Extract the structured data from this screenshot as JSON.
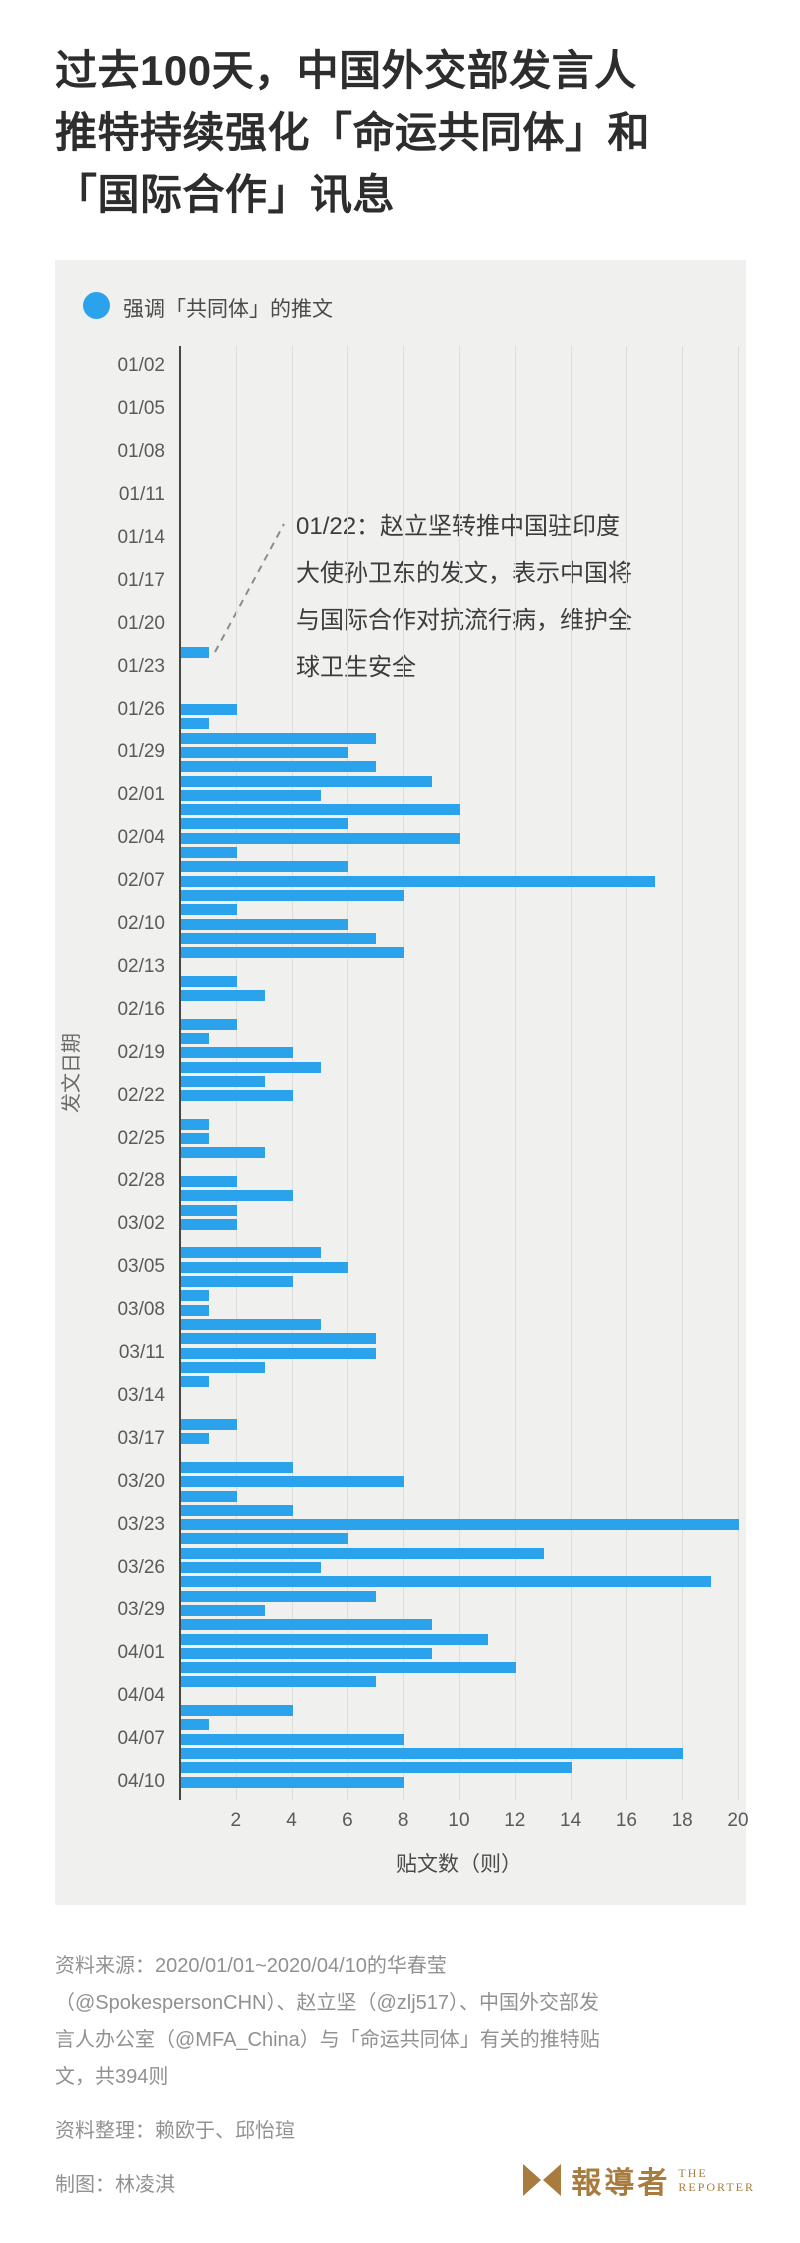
{
  "title": {
    "text": "过去100天，中国外交部发言人\n推特持续强化「命运共同体」和\n「国际合作」讯息"
  },
  "legend": {
    "label": "强调「共同体」的推文"
  },
  "annotation": {
    "text": "01/22：赵立坚转推中国驻印度\n大使孙卫东的发文，表示中国将\n与国际合作对抗流行病，维护全\n球卫生安全"
  },
  "chart_data": {
    "type": "bar",
    "orientation": "horizontal",
    "title": "强调「共同体」的推文",
    "xlabel": "贴文数（则）",
    "ylabel": "发文日期",
    "xlim": [
      0,
      20.3
    ],
    "x_ticks": [
      2,
      4,
      6,
      8,
      10,
      12,
      14,
      16,
      18,
      20
    ],
    "grid": true,
    "bar_color": "#2aa2ec",
    "total_label": "共394则",
    "total": 394,
    "y_tick_labels": [
      "01/02",
      "01/05",
      "01/08",
      "01/11",
      "01/14",
      "01/17",
      "01/20",
      "01/23",
      "01/26",
      "01/29",
      "02/01",
      "02/04",
      "02/07",
      "02/10",
      "02/13",
      "02/16",
      "02/19",
      "02/22",
      "02/25",
      "02/28",
      "03/02",
      "03/05",
      "03/08",
      "03/11",
      "03/14",
      "03/17",
      "03/20",
      "03/23",
      "03/26",
      "03/29",
      "04/01",
      "04/04",
      "04/07",
      "04/10"
    ],
    "dates": [
      "01/01",
      "01/02",
      "01/03",
      "01/04",
      "01/05",
      "01/06",
      "01/07",
      "01/08",
      "01/09",
      "01/10",
      "01/11",
      "01/12",
      "01/13",
      "01/14",
      "01/15",
      "01/16",
      "01/17",
      "01/18",
      "01/19",
      "01/20",
      "01/21",
      "01/22",
      "01/23",
      "01/24",
      "01/25",
      "01/26",
      "01/27",
      "01/28",
      "01/29",
      "01/30",
      "01/31",
      "02/01",
      "02/02",
      "02/03",
      "02/04",
      "02/05",
      "02/06",
      "02/07",
      "02/08",
      "02/09",
      "02/10",
      "02/11",
      "02/12",
      "02/13",
      "02/14",
      "02/15",
      "02/16",
      "02/17",
      "02/18",
      "02/19",
      "02/20",
      "02/21",
      "02/22",
      "02/23",
      "02/24",
      "02/25",
      "02/26",
      "02/27",
      "02/28",
      "02/29",
      "03/01",
      "03/02",
      "03/03",
      "03/04",
      "03/05",
      "03/06",
      "03/07",
      "03/08",
      "03/09",
      "03/10",
      "03/11",
      "03/12",
      "03/13",
      "03/14",
      "03/15",
      "03/16",
      "03/17",
      "03/18",
      "03/19",
      "03/20",
      "03/21",
      "03/22",
      "03/23",
      "03/24",
      "03/25",
      "03/26",
      "03/27",
      "03/28",
      "03/29",
      "03/30",
      "03/31",
      "04/01",
      "04/02",
      "04/03",
      "04/04",
      "04/05",
      "04/06",
      "04/07",
      "04/08",
      "04/09",
      "04/10"
    ],
    "values": [
      0,
      0,
      0,
      0,
      0,
      0,
      0,
      0,
      0,
      0,
      0,
      0,
      0,
      0,
      0,
      0,
      0,
      0,
      0,
      0,
      0,
      1,
      0,
      0,
      0,
      2,
      1,
      7,
      6,
      7,
      9,
      5,
      10,
      6,
      10,
      2,
      6,
      17,
      8,
      2,
      6,
      7,
      8,
      0,
      2,
      3,
      0,
      2,
      1,
      4,
      5,
      3,
      4,
      0,
      1,
      1,
      3,
      0,
      2,
      4,
      2,
      2,
      0,
      5,
      6,
      4,
      1,
      1,
      5,
      7,
      7,
      3,
      1,
      0,
      0,
      2,
      1,
      0,
      4,
      8,
      2,
      4,
      20,
      6,
      13,
      5,
      19,
      7,
      3,
      9,
      11,
      9,
      12,
      7,
      0,
      4,
      1,
      8,
      18,
      14,
      8
    ]
  },
  "footer": {
    "source": "资料来源：2020/01/01~2020/04/10的华春莹\n（@SpokespersonCHN）、赵立坚（@zlj517）、中国外交部发\n言人办公室（@MFA_China）与「命运共同体」有关的推特贴\n文，共394则",
    "editors": "资料整理：赖欧于、邱怡瑄",
    "graphics": "制图：林凌淇"
  },
  "logo": {
    "name_zh": "報導者",
    "name_en_top": "THE",
    "name_en_bottom": "REPORTER",
    "color": "#a87c3e"
  }
}
